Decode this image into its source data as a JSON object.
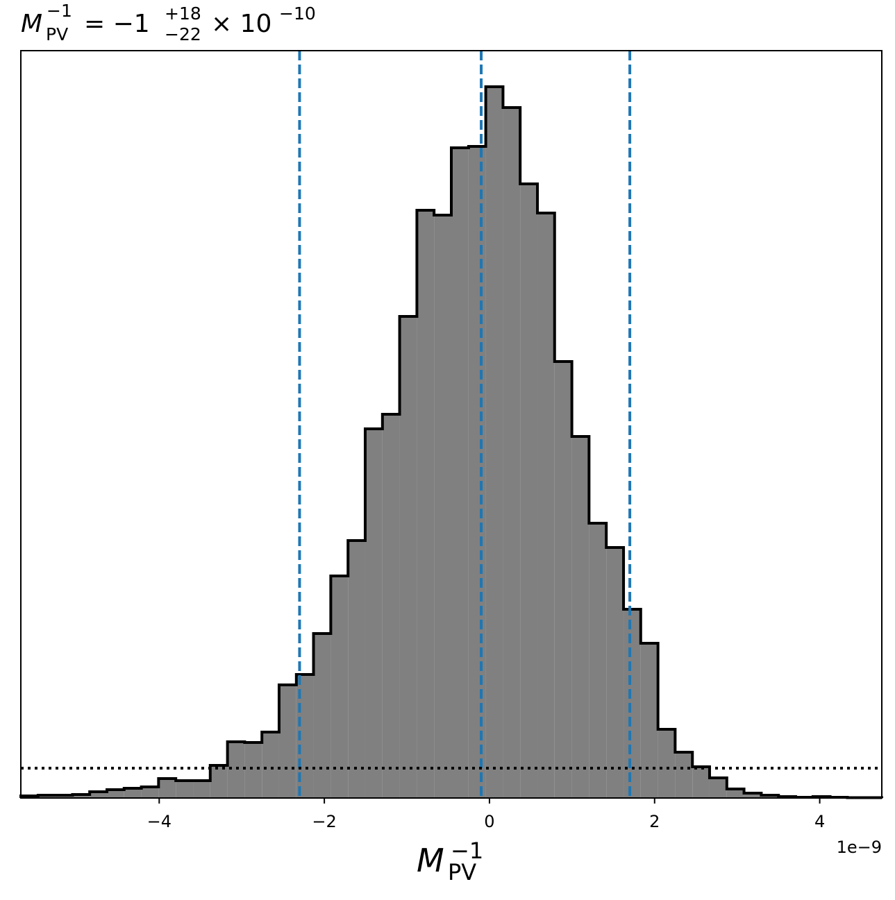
{
  "chart_data": {
    "type": "histogram",
    "title": {
      "symbol": "M",
      "symbol_sup": "−1",
      "symbol_sub": "PV",
      "value": "= −1",
      "upper": "+18",
      "lower": "−22",
      "scale": "× 10",
      "scale_exp": "−10"
    },
    "xlabel": {
      "symbol": "M",
      "sup": "−1",
      "sub": "PV"
    },
    "offset_label": "1e−9",
    "bins": [
      -5.676,
      -5.467,
      -5.259,
      -5.05,
      -4.842,
      -4.633,
      -4.425,
      -4.216,
      -4.008,
      -3.799,
      -3.59,
      -3.382,
      -3.173,
      -2.965,
      -2.756,
      -2.548,
      -2.339,
      -2.131,
      -1.922,
      -1.713,
      -1.505,
      -1.296,
      -1.088,
      -0.879,
      -0.671,
      -0.462,
      -0.253,
      -0.045,
      0.164,
      0.372,
      0.581,
      0.789,
      0.998,
      1.206,
      1.415,
      1.624,
      1.832,
      2.041,
      2.249,
      2.458,
      2.666,
      2.875,
      3.083,
      3.292,
      3.501,
      3.709,
      3.918,
      4.126,
      4.335,
      4.543,
      4.752
    ],
    "values": [
      3,
      4,
      4,
      5,
      9,
      12,
      14,
      16,
      28,
      25,
      25,
      47,
      81,
      80,
      95,
      163,
      178,
      237,
      320,
      371,
      532,
      553,
      694,
      847,
      840,
      937,
      939,
      1025,
      995,
      885,
      843,
      629,
      521,
      396,
      361,
      272,
      223,
      99,
      66,
      45,
      29,
      13,
      7,
      4,
      2,
      1,
      2,
      1,
      0.5,
      0.5
    ],
    "color": "#808080",
    "edgecolor": "#000000",
    "xlim": [
      -5.676,
      4.752
    ],
    "ylim": [
      0,
      1077
    ],
    "xticks": [
      {
        "value": -4,
        "label": "−4"
      },
      {
        "value": -2,
        "label": "−2"
      },
      0,
      2,
      4
    ],
    "vlines": [
      -2.3,
      -0.1,
      1.7
    ],
    "vline_color": "#1f77b4",
    "hline": 43,
    "hline_color": "#000000"
  }
}
